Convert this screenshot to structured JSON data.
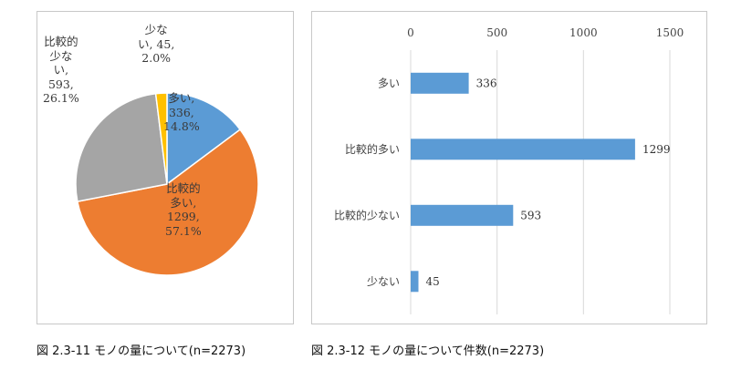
{
  "chart_data": [
    {
      "type": "pie",
      "title": "",
      "slices": [
        {
          "category": "多い",
          "value": 336,
          "percent": "14.8%",
          "label_lines": [
            "多い,",
            "336,",
            "14.8%"
          ]
        },
        {
          "category": "比較的多い",
          "value": 1299,
          "percent": "57.1%",
          "label_lines": [
            "比較的",
            "多い,",
            "1299,",
            "57.1%"
          ]
        },
        {
          "category": "比較的少ない",
          "value": 593,
          "percent": "26.1%",
          "label_lines": [
            "比較的",
            "少な",
            "い,",
            "593,",
            "26.1%"
          ]
        },
        {
          "category": "少ない",
          "value": 45,
          "percent": "2.0%",
          "label_lines": [
            "少な",
            "い, 45,",
            "2.0%"
          ]
        }
      ],
      "colors": [
        "#5b9bd5",
        "#ed7d31",
        "#a5a5a5",
        "#ffc000"
      ]
    },
    {
      "type": "bar",
      "orientation": "horizontal",
      "title": "",
      "categories": [
        "多い",
        "比較的多い",
        "比較的少ない",
        "少ない"
      ],
      "values": [
        336,
        1299,
        593,
        45
      ],
      "xlim": [
        0,
        1500
      ],
      "xticks": [
        0,
        500,
        1000,
        1500
      ],
      "xaxis_position": "top",
      "grid": true,
      "color": "#5b9bd5"
    }
  ],
  "captions": {
    "pie": "図 2.3-11 モノの量について(n=2273)",
    "bar": "図 2.3-12 モノの量について件数(n=2273)"
  }
}
